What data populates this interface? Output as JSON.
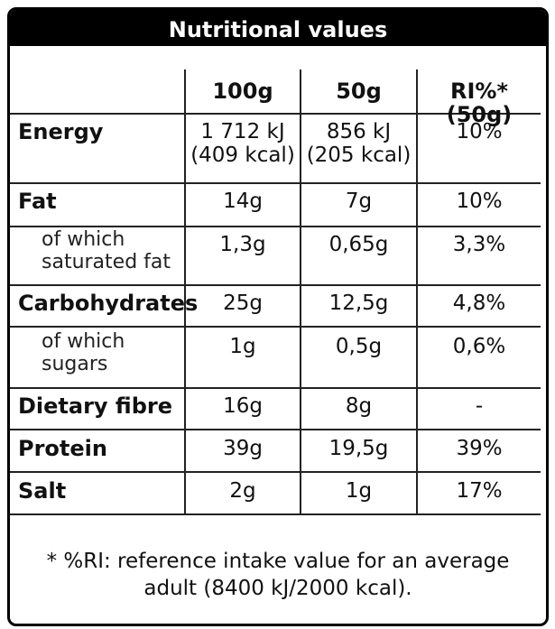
{
  "title": "Nutritional values",
  "columns": [
    "100g",
    "50g",
    "RI%* (50g)"
  ],
  "rows": [
    {
      "label": "Energy",
      "v100": "1 712 kJ\n(409 kcal)",
      "v50": "856 kJ\n(205 kcal)",
      "ri": "10%"
    },
    {
      "label": "Fat",
      "v100": "14g",
      "v50": "7g",
      "ri": "10%"
    },
    {
      "label": "of which\nsaturated fat",
      "v100": "1,3g",
      "v50": "0,65g",
      "ri": "3,3%"
    },
    {
      "label": "Carbohydrates",
      "v100": "25g",
      "v50": "12,5g",
      "ri": "4,8%"
    },
    {
      "label": "of which\nsugars",
      "v100": "1g",
      "v50": "0,5g",
      "ri": "0,6%"
    },
    {
      "label": "Dietary fibre",
      "v100": "16g",
      "v50": "8g",
      "ri": "-"
    },
    {
      "label": "Protein",
      "v100": "39g",
      "v50": "19,5g",
      "ri": "39%"
    },
    {
      "label": "Salt",
      "v100": "2g",
      "v50": "1g",
      "ri": "17%"
    }
  ],
  "footnote": "* %RI: reference intake value for an average\nadult (8400 kJ/2000 kcal)."
}
